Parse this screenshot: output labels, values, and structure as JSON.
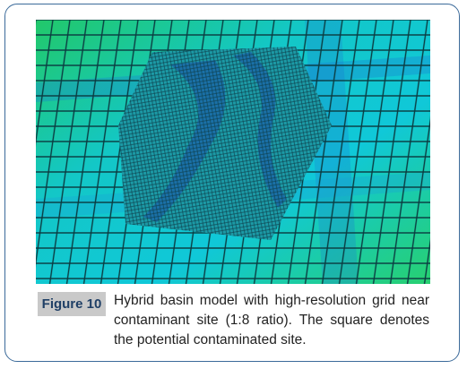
{
  "figure": {
    "label": "Figure 10",
    "caption": "Hybrid basin model with high-resolution grid near contaminant site (1:8 ratio). The square denotes the potential contaminated site."
  }
}
